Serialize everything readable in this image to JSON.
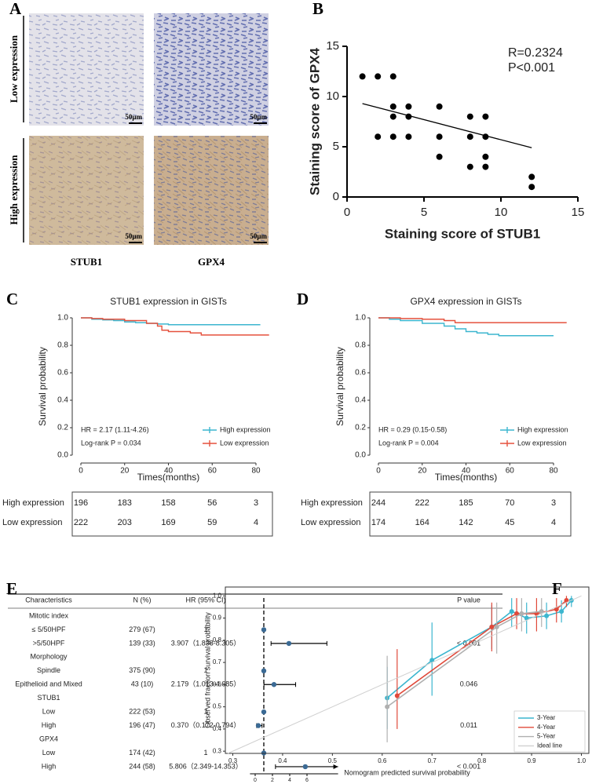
{
  "panel_labels": [
    "A",
    "B",
    "C",
    "D",
    "E",
    "F"
  ],
  "ihc": {
    "row_labels": [
      "Low expression",
      "High expression"
    ],
    "col_labels": [
      "STUB1",
      "GPX4"
    ],
    "scale_bar": "50μm"
  },
  "chart_data": [
    {
      "type": "scatter",
      "xlabel": "Staining score of STUB1",
      "ylabel": "Staining score of GPX4",
      "annotations": [
        "R=0.2324",
        "P<0.001"
      ],
      "x": [
        1,
        2,
        3,
        2,
        3,
        3,
        3,
        4,
        4,
        4,
        6,
        6,
        6,
        8,
        8,
        8,
        9,
        9,
        9,
        9,
        12,
        12
      ],
      "values": [
        12,
        12,
        12,
        6,
        9,
        8,
        6,
        9,
        8,
        6,
        9,
        6,
        4,
        8,
        6,
        3,
        8,
        6,
        4,
        3,
        2,
        1
      ],
      "color": "#000000",
      "fit_line": {
        "x": [
          1,
          12
        ],
        "values": [
          9.3,
          4.9
        ],
        "color": "#000000"
      },
      "xlim": [
        0,
        15
      ],
      "xticks": [
        0,
        5,
        10,
        15
      ],
      "ylim": [
        0,
        15
      ],
      "yticks": [
        0,
        5,
        10,
        15
      ]
    },
    {
      "type": "survival",
      "title": "STUB1 expression in GISTs",
      "xlabel": "Times(months)",
      "ylabel": "Survival probability",
      "annotations": [
        "HR = 2.17 (1.11-4.26)",
        "Log-rank P = 0.034"
      ],
      "series": [
        {
          "name": "High expression",
          "color": "#3cb6cf",
          "x": [
            0,
            5,
            10,
            15,
            20,
            25,
            30,
            35,
            40,
            82
          ],
          "values": [
            1,
            0.99,
            0.985,
            0.98,
            0.97,
            0.965,
            0.96,
            0.955,
            0.95,
            0.95
          ],
          "at_risk": [
            196,
            183,
            158,
            56,
            3
          ]
        },
        {
          "name": "Low expression",
          "color": "#e5513d",
          "x": [
            0,
            5,
            10,
            20,
            30,
            35,
            37,
            40,
            50,
            55,
            86
          ],
          "values": [
            1,
            0.995,
            0.99,
            0.98,
            0.96,
            0.94,
            0.91,
            0.9,
            0.89,
            0.875,
            0.875
          ],
          "at_risk": [
            222,
            203,
            169,
            59,
            4
          ]
        }
      ],
      "xlim": [
        0,
        80
      ],
      "xticks": [
        0,
        20,
        40,
        60,
        80
      ],
      "ylim": [
        0,
        1
      ],
      "yticks": [
        {
          "value": 0,
          "label": "0.0"
        },
        {
          "value": 0.2,
          "label": "0.2"
        },
        {
          "value": 0.4,
          "label": "0.4"
        },
        {
          "value": 0.6,
          "label": "0.6"
        },
        {
          "value": 0.8,
          "label": "0.8"
        },
        {
          "value": 1,
          "label": "1.0"
        }
      ]
    },
    {
      "type": "survival",
      "title": "GPX4 expression in GISTs",
      "xlabel": "Times(months)",
      "ylabel": "Survival probability",
      "annotations": [
        "HR = 0.29 (0.15-0.58)",
        "Log-rank P = 0.004"
      ],
      "series": [
        {
          "name": "High expression",
          "color": "#3cb6cf",
          "x": [
            0,
            5,
            10,
            20,
            30,
            35,
            40,
            45,
            50,
            55,
            80
          ],
          "values": [
            1,
            0.99,
            0.98,
            0.96,
            0.94,
            0.92,
            0.9,
            0.89,
            0.88,
            0.87,
            0.87
          ],
          "at_risk": [
            244,
            222,
            185,
            70,
            3
          ]
        },
        {
          "name": "Low expression",
          "color": "#e5513d",
          "x": [
            0,
            10,
            20,
            30,
            35,
            86
          ],
          "values": [
            1,
            0.995,
            0.99,
            0.98,
            0.965,
            0.965
          ],
          "at_risk": [
            174,
            164,
            142,
            45,
            4
          ]
        }
      ],
      "xlim": [
        0,
        80
      ],
      "xticks": [
        0,
        20,
        40,
        60,
        80
      ],
      "ylim": [
        0,
        1
      ],
      "yticks": [
        {
          "value": 0,
          "label": "0.0"
        },
        {
          "value": 0.2,
          "label": "0.2"
        },
        {
          "value": 0.4,
          "label": "0.4"
        },
        {
          "value": 0.6,
          "label": "0.6"
        },
        {
          "value": 0.8,
          "label": "0.8"
        },
        {
          "value": 1,
          "label": "1.0"
        }
      ]
    },
    {
      "type": "forest",
      "columns": [
        "Characteristics",
        "N (%)",
        "HR (95% CI)",
        "P value"
      ],
      "rows": [
        {
          "label": "Mitotic index"
        },
        {
          "label": "≤ 5/50HPF",
          "n": "279 (67)",
          "hr_text": "1",
          "hr": 1
        },
        {
          "label": ">5/50HPF",
          "n": "139 (33)",
          "hr_text": "3.907（1.838-8.305）",
          "p": "< 0.001",
          "hr": 3.907,
          "lo": 1.838,
          "hi": 8.305
        },
        {
          "label": "Morphology"
        },
        {
          "label": "Spindle",
          "n": "375 (90)",
          "hr_text": "1",
          "hr": 1
        },
        {
          "label": "Epithelioid and Mixed",
          "n": "43 (10)",
          "hr_text": "2.179（1.013-4.685）",
          "p": "0.046",
          "hr": 2.179,
          "lo": 1.013,
          "hi": 4.685
        },
        {
          "label": "STUB1"
        },
        {
          "label": "Low",
          "n": "222 (53)",
          "hr_text": "1",
          "hr": 1
        },
        {
          "label": "High",
          "n": "196 (47)",
          "hr_text": "0.370（0.172-0.794）",
          "p": "0.011",
          "hr": 0.37,
          "lo": 0.172,
          "hi": 0.794
        },
        {
          "label": "GPX4"
        },
        {
          "label": "Low",
          "n": "174 (42)",
          "hr_text": "1",
          "hr": 1
        },
        {
          "label": "High",
          "n": "244 (58)",
          "hr_text": "5.806（2.349-14.353）",
          "p": "< 0.001",
          "hr": 5.806,
          "lo": 2.349,
          "hi": 14.353
        }
      ],
      "reference_line": 1,
      "color": "#3b6a94",
      "xlim": [
        -0.6,
        9.6
      ],
      "xticks": [
        0,
        2,
        4,
        6
      ]
    },
    {
      "type": "calibration",
      "xlabel": "Nomogram predicted survival probability",
      "ylabel": "Observed fraction survival probability",
      "series": [
        {
          "name": "3-Year",
          "color": "#3cb6cf",
          "x": [
            0.61,
            0.7,
            0.82,
            0.86,
            0.89,
            0.93,
            0.96,
            0.98
          ],
          "values": [
            0.54,
            0.71,
            0.86,
            0.93,
            0.9,
            0.91,
            0.93,
            0.98
          ],
          "lower": [
            0.4,
            0.55,
            0.76,
            0.86,
            0.83,
            0.85,
            0.88,
            0.95
          ],
          "upper": [
            0.68,
            0.88,
            0.96,
            0.99,
            0.97,
            0.97,
            0.98,
            1.0
          ]
        },
        {
          "name": "4-Year",
          "color": "#e0493a",
          "x": [
            0.63,
            0.82,
            0.87,
            0.91,
            0.95,
            0.97
          ],
          "values": [
            0.55,
            0.86,
            0.92,
            0.92,
            0.94,
            0.98
          ],
          "lower": [
            0.4,
            0.75,
            0.85,
            0.84,
            0.88,
            0.95
          ],
          "upper": [
            0.76,
            0.97,
            0.99,
            0.99,
            0.99,
            1.0
          ]
        },
        {
          "name": "5-Year",
          "color": "#b0b0b0",
          "x": [
            0.61,
            0.83,
            0.88,
            0.92
          ],
          "values": [
            0.5,
            0.86,
            0.92,
            0.93
          ],
          "lower": [
            0.34,
            0.74,
            0.84,
            0.86
          ],
          "upper": [
            0.73,
            0.97,
            0.99,
            0.99
          ]
        },
        {
          "name": "Ideal line",
          "color": "#d0d0d0",
          "x": [
            0.29,
            1.0
          ],
          "values": [
            0.29,
            1.0
          ]
        }
      ],
      "xlim": [
        0.285,
        1.015
      ],
      "xticks": [
        0.3,
        0.4,
        0.5,
        0.6,
        0.7,
        0.8,
        0.9,
        {
          "value": 1,
          "label": "1.0"
        }
      ],
      "ylim": [
        0.29,
        1.04
      ],
      "yticks": [
        0.3,
        0.4,
        0.5,
        0.6,
        0.7,
        0.8,
        0.9,
        {
          "value": 1,
          "label": "1.0"
        }
      ]
    }
  ]
}
